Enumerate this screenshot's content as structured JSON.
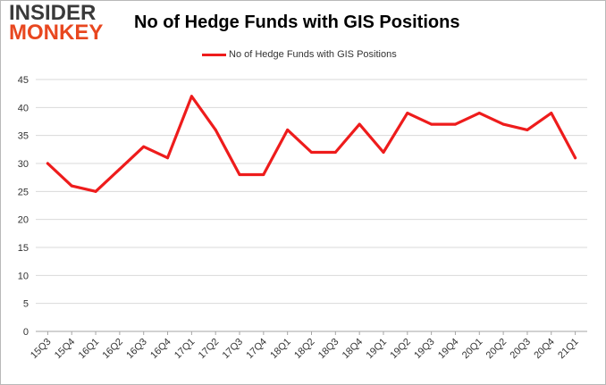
{
  "logo": {
    "line1": "INSIDER",
    "line2": "MONKEY"
  },
  "colors": {
    "series": "#ee1c1c",
    "grid": "#d9d9d9",
    "logo_orange": "#e8471f"
  },
  "chart_data": {
    "type": "line",
    "title": "No of Hedge Funds with GIS Positions",
    "xlabel": "",
    "ylabel": "",
    "ylim": [
      0,
      45
    ],
    "yticks": [
      0,
      5,
      10,
      15,
      20,
      25,
      30,
      35,
      40,
      45
    ],
    "grid": "horizontal",
    "legend_position": "top",
    "categories": [
      "15Q3",
      "15Q4",
      "16Q1",
      "16Q2",
      "16Q3",
      "16Q4",
      "17Q1",
      "17Q2",
      "17Q3",
      "17Q4",
      "18Q1",
      "18Q2",
      "18Q3",
      "18Q4",
      "19Q1",
      "19Q2",
      "19Q3",
      "19Q4",
      "20Q1",
      "20Q2",
      "20Q3",
      "20Q4",
      "21Q1"
    ],
    "series": [
      {
        "name": "No of Hedge Funds with GIS Positions",
        "values": [
          30,
          26,
          25,
          29,
          33,
          31,
          42,
          36,
          28,
          28,
          36,
          32,
          32,
          37,
          32,
          39,
          37,
          37,
          39,
          37,
          36,
          39,
          31
        ]
      }
    ]
  }
}
